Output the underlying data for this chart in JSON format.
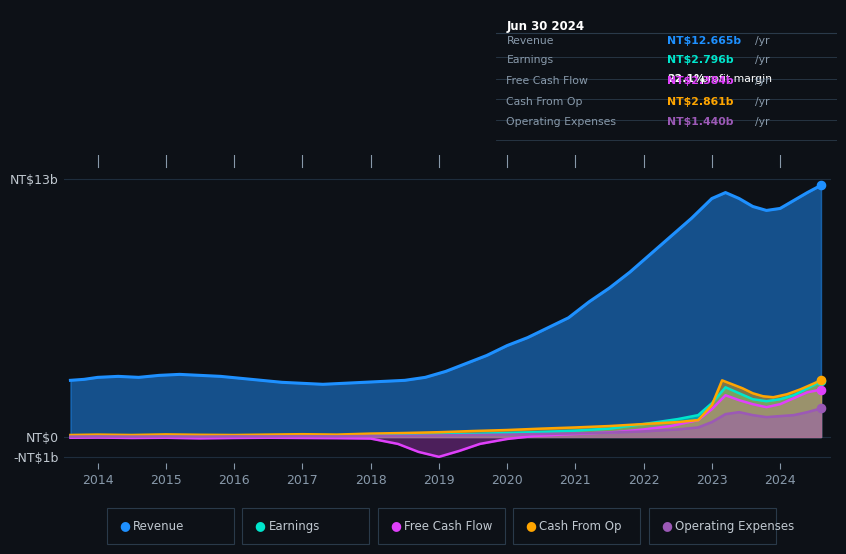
{
  "background_color": "#0d1117",
  "plot_bg_color": "#0d1117",
  "y_label_top": "NT$13b",
  "y_label_zero": "NT$0",
  "y_label_neg": "-NT$1b",
  "x_ticks": [
    2014,
    2015,
    2016,
    2017,
    2018,
    2019,
    2020,
    2021,
    2022,
    2023,
    2024
  ],
  "ylim": [
    -1.3,
    14.2
  ],
  "xlim": [
    2013.5,
    2024.75
  ],
  "series_colors": {
    "Revenue": "#1e90ff",
    "Earnings": "#00e5cc",
    "Free Cash Flow": "#e040fb",
    "Cash From Op": "#ffa500",
    "Operating Expenses": "#9b59b6"
  },
  "legend_items": [
    {
      "label": "Revenue",
      "color": "#1e90ff"
    },
    {
      "label": "Earnings",
      "color": "#00e5cc"
    },
    {
      "label": "Free Cash Flow",
      "color": "#e040fb"
    },
    {
      "label": "Cash From Op",
      "color": "#ffa500"
    },
    {
      "label": "Operating Expenses",
      "color": "#9b59b6"
    }
  ],
  "tooltip": {
    "date": "Jun 30 2024",
    "rows": [
      {
        "label": "Revenue",
        "value": "NT$12.665b",
        "unit": "/yr",
        "color": "#1e90ff",
        "extra": null
      },
      {
        "label": "Earnings",
        "value": "NT$2.796b",
        "unit": "/yr",
        "color": "#00e5cc",
        "extra": "22.1% profit margin"
      },
      {
        "label": "Free Cash Flow",
        "value": "NT$2.384b",
        "unit": "/yr",
        "color": "#e040fb",
        "extra": null
      },
      {
        "label": "Cash From Op",
        "value": "NT$2.861b",
        "unit": "/yr",
        "color": "#ffa500",
        "extra": null
      },
      {
        "label": "Operating Expenses",
        "value": "NT$1.440b",
        "unit": "/yr",
        "color": "#9b59b6",
        "extra": null
      }
    ]
  },
  "revenue": {
    "x": [
      2013.6,
      2013.8,
      2014.0,
      2014.3,
      2014.6,
      2014.9,
      2015.2,
      2015.5,
      2015.8,
      2016.1,
      2016.4,
      2016.7,
      2017.0,
      2017.3,
      2017.6,
      2017.9,
      2018.2,
      2018.5,
      2018.8,
      2019.1,
      2019.4,
      2019.7,
      2020.0,
      2020.3,
      2020.6,
      2020.9,
      2021.2,
      2021.5,
      2021.8,
      2022.1,
      2022.4,
      2022.7,
      2023.0,
      2023.2,
      2023.4,
      2023.6,
      2023.8,
      2024.0,
      2024.2,
      2024.4,
      2024.6
    ],
    "y": [
      2.85,
      2.9,
      3.0,
      3.05,
      3.0,
      3.1,
      3.15,
      3.1,
      3.05,
      2.95,
      2.85,
      2.75,
      2.7,
      2.65,
      2.7,
      2.75,
      2.8,
      2.85,
      3.0,
      3.3,
      3.7,
      4.1,
      4.6,
      5.0,
      5.5,
      6.0,
      6.8,
      7.5,
      8.3,
      9.2,
      10.1,
      11.0,
      12.0,
      12.3,
      12.0,
      11.6,
      11.4,
      11.5,
      11.9,
      12.3,
      12.665
    ]
  },
  "earnings": {
    "x": [
      2013.6,
      2014.0,
      2014.5,
      2015.0,
      2015.5,
      2016.0,
      2016.5,
      2017.0,
      2017.5,
      2018.0,
      2018.5,
      2019.0,
      2019.5,
      2020.0,
      2020.5,
      2021.0,
      2021.5,
      2022.0,
      2022.5,
      2022.8,
      2023.0,
      2023.2,
      2023.4,
      2023.6,
      2023.8,
      2024.0,
      2024.2,
      2024.4,
      2024.6
    ],
    "y": [
      0.05,
      0.07,
      0.06,
      0.08,
      0.06,
      0.05,
      0.06,
      0.07,
      0.06,
      0.08,
      0.09,
      0.12,
      0.15,
      0.2,
      0.25,
      0.32,
      0.42,
      0.65,
      0.9,
      1.1,
      1.7,
      2.5,
      2.2,
      1.9,
      1.8,
      1.9,
      2.1,
      2.45,
      2.796
    ]
  },
  "free_cash_flow": {
    "x": [
      2013.6,
      2014.0,
      2014.5,
      2015.0,
      2015.5,
      2016.0,
      2016.5,
      2017.0,
      2017.5,
      2018.0,
      2018.4,
      2018.7,
      2019.0,
      2019.3,
      2019.6,
      2020.0,
      2020.4,
      2020.8,
      2021.2,
      2021.6,
      2022.0,
      2022.4,
      2022.8,
      2023.0,
      2023.2,
      2023.4,
      2023.6,
      2023.8,
      2024.0,
      2024.2,
      2024.4,
      2024.6
    ],
    "y": [
      -0.04,
      -0.03,
      -0.05,
      -0.04,
      -0.07,
      -0.05,
      -0.04,
      -0.05,
      -0.06,
      -0.08,
      -0.35,
      -0.75,
      -1.0,
      -0.7,
      -0.35,
      -0.1,
      0.05,
      0.12,
      0.18,
      0.25,
      0.38,
      0.55,
      0.85,
      1.4,
      2.1,
      1.85,
      1.65,
      1.5,
      1.65,
      1.95,
      2.25,
      2.384
    ]
  },
  "cash_from_op": {
    "x": [
      2013.6,
      2014.0,
      2014.5,
      2015.0,
      2015.5,
      2016.0,
      2016.5,
      2017.0,
      2017.5,
      2018.0,
      2018.5,
      2019.0,
      2019.5,
      2020.0,
      2020.5,
      2021.0,
      2021.5,
      2022.0,
      2022.5,
      2022.8,
      2023.0,
      2023.15,
      2023.3,
      2023.45,
      2023.6,
      2023.75,
      2023.9,
      2024.1,
      2024.3,
      2024.5,
      2024.6
    ],
    "y": [
      0.1,
      0.12,
      0.1,
      0.13,
      0.11,
      0.1,
      0.12,
      0.14,
      0.12,
      0.17,
      0.2,
      0.24,
      0.3,
      0.35,
      0.42,
      0.48,
      0.55,
      0.65,
      0.75,
      0.85,
      1.6,
      2.85,
      2.65,
      2.45,
      2.2,
      2.05,
      2.0,
      2.15,
      2.4,
      2.7,
      2.861
    ]
  },
  "operating_expenses": {
    "x": [
      2013.6,
      2014.0,
      2014.5,
      2015.0,
      2015.5,
      2016.0,
      2016.5,
      2017.0,
      2017.5,
      2018.0,
      2018.5,
      2019.0,
      2019.5,
      2020.0,
      2020.5,
      2021.0,
      2021.5,
      2022.0,
      2022.5,
      2022.8,
      2023.0,
      2023.2,
      2023.4,
      2023.6,
      2023.8,
      2024.0,
      2024.2,
      2024.4,
      2024.6
    ],
    "y": [
      0.02,
      0.03,
      0.02,
      0.03,
      0.02,
      0.03,
      0.03,
      0.04,
      0.03,
      0.05,
      0.06,
      0.08,
      0.1,
      0.12,
      0.15,
      0.18,
      0.22,
      0.28,
      0.38,
      0.48,
      0.75,
      1.15,
      1.25,
      1.1,
      1.0,
      1.05,
      1.1,
      1.25,
      1.44
    ]
  },
  "grid_color": "#1e2d3d",
  "zero_line_color": "#556677",
  "text_color": "#c0c8d0",
  "tick_color": "#8899aa"
}
